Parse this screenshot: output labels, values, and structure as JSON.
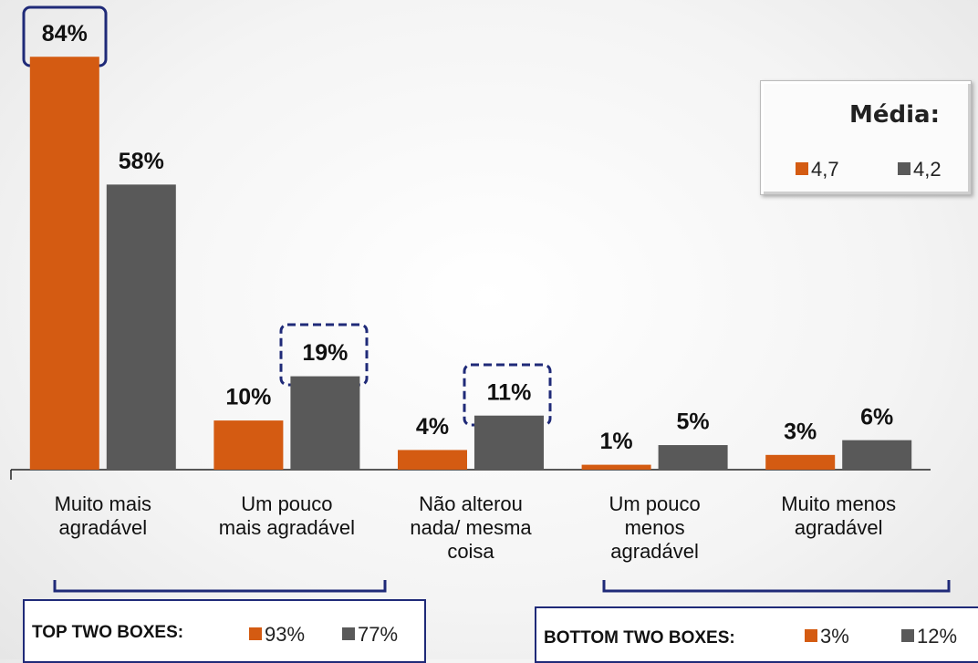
{
  "chart_data": {
    "type": "bar",
    "categories": [
      "Muito mais\nagradável",
      "Um pouco\nmais agradável",
      "Não alterou\nnada/ mesma\ncoisa",
      "Um pouco\nmenos\nagradável",
      "Muito menos\nagradável"
    ],
    "series": [
      {
        "color": "#d45b12",
        "values": [
          84,
          10,
          4,
          1,
          3
        ],
        "value_labels": [
          "84%",
          "10%",
          "4%",
          "1%",
          "3%"
        ],
        "mean": "4,7"
      },
      {
        "color": "#595959",
        "values": [
          58,
          19,
          11,
          5,
          6
        ],
        "value_labels": [
          "58%",
          "19%",
          "11%",
          "5%",
          "6%"
        ],
        "mean": "4,2"
      }
    ],
    "legend_title": "Média:",
    "groups": [
      {
        "label": "TOP TWO BOXES:",
        "values": [
          "93%",
          "77%"
        ]
      },
      {
        "label": "BOTTOM TWO BOXES:",
        "values": [
          "3%",
          "12%"
        ]
      }
    ]
  }
}
